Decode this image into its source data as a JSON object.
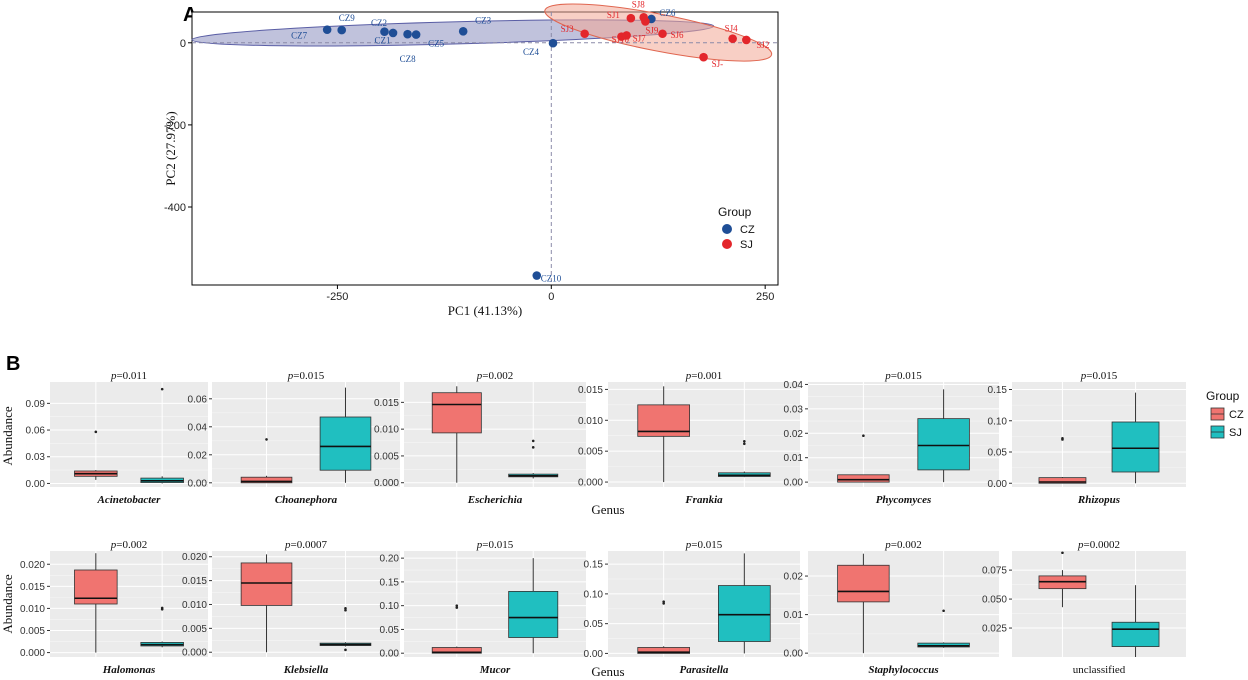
{
  "panel_labels": {
    "a": "A",
    "b": "B"
  },
  "chart_data": [
    {
      "type": "scatter",
      "panel": "A",
      "xlabel": "PC1 (41.13%)",
      "ylabel": "PC2 (27.97%)",
      "xlim": [
        -420,
        265
      ],
      "ylim": [
        -590,
        75
      ],
      "xticks": [
        -250,
        0,
        250
      ],
      "yticks": [
        0,
        -200,
        -400
      ],
      "reference_lines": {
        "x": 0,
        "y": 0
      },
      "legend": {
        "title": "Group",
        "position": "bottom-right"
      },
      "colors": {
        "CZ": "#1f4e96",
        "SJ": "#e3262b"
      },
      "ellipses": [
        {
          "group": "CZ",
          "cx": -115,
          "cy": 24,
          "rx": 305,
          "ry": 27,
          "angle_deg": -1.5,
          "fill": "#8c8fc0",
          "stroke": "#5a5ea5"
        },
        {
          "group": "SJ",
          "cx": 125,
          "cy": 25,
          "rx": 135,
          "ry": 45,
          "angle_deg": 11,
          "fill": "#f3a895",
          "stroke": "#e06650"
        }
      ],
      "series": [
        {
          "name": "CZ",
          "points": [
            {
              "label": "CZ1",
              "x": -195,
              "y": 27
            },
            {
              "label": "CZ2",
              "x": -185,
              "y": 24
            },
            {
              "label": "CZ3",
              "x": -103,
              "y": 28
            },
            {
              "label": "CZ4",
              "x": 2,
              "y": -1
            },
            {
              "label": "CZ5",
              "x": -158,
              "y": 20
            },
            {
              "label": "CZ6",
              "x": 117,
              "y": 58
            },
            {
              "label": "CZ7",
              "x": -262,
              "y": 32
            },
            {
              "label": "CZ8",
              "x": -168,
              "y": 21
            },
            {
              "label": "CZ9",
              "x": -245,
              "y": 31
            },
            {
              "label": "CZ10",
              "x": -17,
              "y": -567
            }
          ]
        },
        {
          "name": "SJ",
          "points": [
            {
              "label": "SJ1",
              "x": 93,
              "y": 60
            },
            {
              "label": "SJ2",
              "x": 228,
              "y": 7
            },
            {
              "label": "SJ3",
              "x": 39,
              "y": 22
            },
            {
              "label": "SJ4",
              "x": 212,
              "y": 10
            },
            {
              "label": "SJ-",
              "x": 178,
              "y": -35
            },
            {
              "label": "SJ6",
              "x": 130,
              "y": 22
            },
            {
              "label": "SJ7",
              "x": 88,
              "y": 18
            },
            {
              "label": "SJ8",
              "x": 108,
              "y": 62
            },
            {
              "label": "SJ9",
              "x": 110,
              "y": 52
            },
            {
              "label": "SJ10",
              "x": 82,
              "y": 15
            }
          ]
        }
      ]
    },
    {
      "type": "box",
      "panel": "B",
      "xlabel": "Genus",
      "ylabel": "Abundance",
      "legend": {
        "title": "Group",
        "position": "right",
        "entries": [
          "CZ",
          "SJ"
        ]
      },
      "colors": {
        "CZ": "#f07470",
        "SJ": "#20bfc0"
      },
      "facets": [
        {
          "genus": "Acinetobacter",
          "p_prefix": "p",
          "p_value": "=0.011",
          "yticks": [
            "0.00",
            "0.03",
            "0.06",
            "0.09"
          ],
          "ylim": [
            -0.004,
            0.114
          ],
          "CZ": {
            "min": 0.004,
            "q1": 0.008,
            "median": 0.011,
            "q3": 0.014,
            "max": 0.015,
            "outliers": [
              0.058
            ]
          },
          "SJ": {
            "min": 0.0,
            "q1": 0.001,
            "median": 0.003,
            "q3": 0.006,
            "max": 0.008,
            "outliers": [
              0.106
            ]
          }
        },
        {
          "genus": "Choanephora",
          "p_prefix": "p",
          "p_value": "=0.015",
          "yticks": [
            "0.00",
            "0.02",
            "0.04",
            "0.06"
          ],
          "ylim": [
            -0.003,
            0.072
          ],
          "CZ": {
            "min": 0.0,
            "q1": 0.0,
            "median": 0.001,
            "q3": 0.004,
            "max": 0.005,
            "outliers": [
              0.031
            ]
          },
          "SJ": {
            "min": 0.0,
            "q1": 0.009,
            "median": 0.026,
            "q3": 0.047,
            "max": 0.068,
            "outliers": []
          }
        },
        {
          "genus": "Escherichia",
          "p_prefix": "p",
          "p_value": "=0.002",
          "yticks": [
            "0.000",
            "0.005",
            "0.010",
            "0.015"
          ],
          "ylim": [
            -0.0008,
            0.0188
          ],
          "CZ": {
            "min": 0.0,
            "q1": 0.0093,
            "median": 0.0146,
            "q3": 0.0168,
            "max": 0.018,
            "outliers": []
          },
          "SJ": {
            "min": 0.0008,
            "q1": 0.0011,
            "median": 0.0013,
            "q3": 0.0016,
            "max": 0.0018,
            "outliers": [
              0.0066,
              0.0078
            ]
          }
        },
        {
          "genus": "Frankia",
          "p_prefix": "p",
          "p_value": "=0.001",
          "yticks": [
            "0.000",
            "0.005",
            "0.010",
            "0.015"
          ],
          "ylim": [
            -0.0008,
            0.0162
          ],
          "CZ": {
            "min": 0.0,
            "q1": 0.0074,
            "median": 0.0082,
            "q3": 0.0125,
            "max": 0.0155,
            "outliers": []
          },
          "SJ": {
            "min": 0.0008,
            "q1": 0.0009,
            "median": 0.0011,
            "q3": 0.0015,
            "max": 0.0017,
            "outliers": [
              0.0062,
              0.0066
            ]
          }
        },
        {
          "genus": "Phycomyces",
          "p_prefix": "p",
          "p_value": "=0.015",
          "yticks": [
            "0.00",
            "0.01",
            "0.02",
            "0.03",
            "0.04"
          ],
          "ylim": [
            -0.002,
            0.041
          ],
          "CZ": {
            "min": 0.0,
            "q1": 0.0,
            "median": 0.001,
            "q3": 0.003,
            "max": 0.003,
            "outliers": [
              0.019
            ]
          },
          "SJ": {
            "min": 0.0,
            "q1": 0.005,
            "median": 0.015,
            "q3": 0.026,
            "max": 0.038,
            "outliers": []
          }
        },
        {
          "genus": "Rhizopus",
          "p_prefix": "p",
          "p_value": "=0.015",
          "yticks": [
            "0.00",
            "0.05",
            "0.10",
            "0.15"
          ],
          "ylim": [
            -0.006,
            0.162
          ],
          "CZ": {
            "min": 0.0,
            "q1": 0.0,
            "median": 0.002,
            "q3": 0.009,
            "max": 0.01,
            "outliers": [
              0.07,
              0.072
            ]
          },
          "SJ": {
            "min": 0.0,
            "q1": 0.018,
            "median": 0.056,
            "q3": 0.098,
            "max": 0.145,
            "outliers": []
          }
        },
        {
          "genus": "Halomonas",
          "p_prefix": "p",
          "p_value": "=0.002",
          "yticks": [
            "0.000",
            "0.005",
            "0.010",
            "0.015",
            "0.020"
          ],
          "ylim": [
            -0.001,
            0.023
          ],
          "CZ": {
            "min": 0.0,
            "q1": 0.011,
            "median": 0.0123,
            "q3": 0.0187,
            "max": 0.0225,
            "outliers": []
          },
          "SJ": {
            "min": 0.0012,
            "q1": 0.0015,
            "median": 0.0018,
            "q3": 0.0023,
            "max": 0.0025,
            "outliers": [
              0.0098,
              0.0101
            ]
          }
        },
        {
          "genus": "Klebsiella",
          "p_prefix": "p",
          "p_value": "=0.0007",
          "yticks": [
            "0.000",
            "0.005",
            "0.010",
            "0.015",
            "0.020"
          ],
          "ylim": [
            -0.001,
            0.0212
          ],
          "CZ": {
            "min": 0.0,
            "q1": 0.0098,
            "median": 0.0145,
            "q3": 0.0187,
            "max": 0.0205,
            "outliers": []
          },
          "SJ": {
            "min": 0.0012,
            "q1": 0.0014,
            "median": 0.0016,
            "q3": 0.0019,
            "max": 0.0021,
            "outliers": [
              0.0005,
              0.0088,
              0.0092
            ]
          }
        },
        {
          "genus": "Mucor",
          "p_prefix": "p",
          "p_value": "=0.015",
          "yticks": [
            "0.00",
            "0.05",
            "0.10",
            "0.15",
            "0.20"
          ],
          "ylim": [
            -0.008,
            0.215
          ],
          "CZ": {
            "min": 0.0,
            "q1": 0.0,
            "median": 0.002,
            "q3": 0.012,
            "max": 0.014,
            "outliers": [
              0.096,
              0.1
            ]
          },
          "SJ": {
            "min": 0.0,
            "q1": 0.033,
            "median": 0.075,
            "q3": 0.13,
            "max": 0.2,
            "outliers": []
          }
        },
        {
          "genus": "Parasitella",
          "p_prefix": "p",
          "p_value": "=0.015",
          "yticks": [
            "0.00",
            "0.05",
            "0.10",
            "0.15"
          ],
          "ylim": [
            -0.006,
            0.172
          ],
          "CZ": {
            "min": 0.0,
            "q1": 0.0,
            "median": 0.002,
            "q3": 0.01,
            "max": 0.012,
            "outliers": [
              0.084,
              0.087
            ]
          },
          "SJ": {
            "min": 0.0,
            "q1": 0.02,
            "median": 0.065,
            "q3": 0.114,
            "max": 0.168,
            "outliers": []
          }
        },
        {
          "genus": "Staphylococcus",
          "p_prefix": "p",
          "p_value": "=0.002",
          "yticks": [
            "0.00",
            "0.01",
            "0.02"
          ],
          "ylim": [
            -0.001,
            0.0265
          ],
          "CZ": {
            "min": 0.0,
            "q1": 0.0133,
            "median": 0.016,
            "q3": 0.0228,
            "max": 0.0258,
            "outliers": []
          },
          "SJ": {
            "min": 0.0014,
            "q1": 0.0016,
            "median": 0.0019,
            "q3": 0.0026,
            "max": 0.0028,
            "outliers": [
              0.011
            ]
          }
        },
        {
          "genus": "unclassified",
          "p_prefix": "p",
          "p_value": "=0.0002",
          "yticks": [
            "0.025",
            "0.050",
            "0.075"
          ],
          "ylim": [
            0.0,
            0.0915
          ],
          "plain": true,
          "CZ": {
            "min": 0.043,
            "q1": 0.059,
            "median": 0.065,
            "q3": 0.07,
            "max": 0.075,
            "outliers": [
              0.09
            ]
          },
          "SJ": {
            "min": 0.0,
            "q1": 0.009,
            "median": 0.024,
            "q3": 0.03,
            "max": 0.062,
            "outliers": []
          }
        }
      ]
    }
  ]
}
